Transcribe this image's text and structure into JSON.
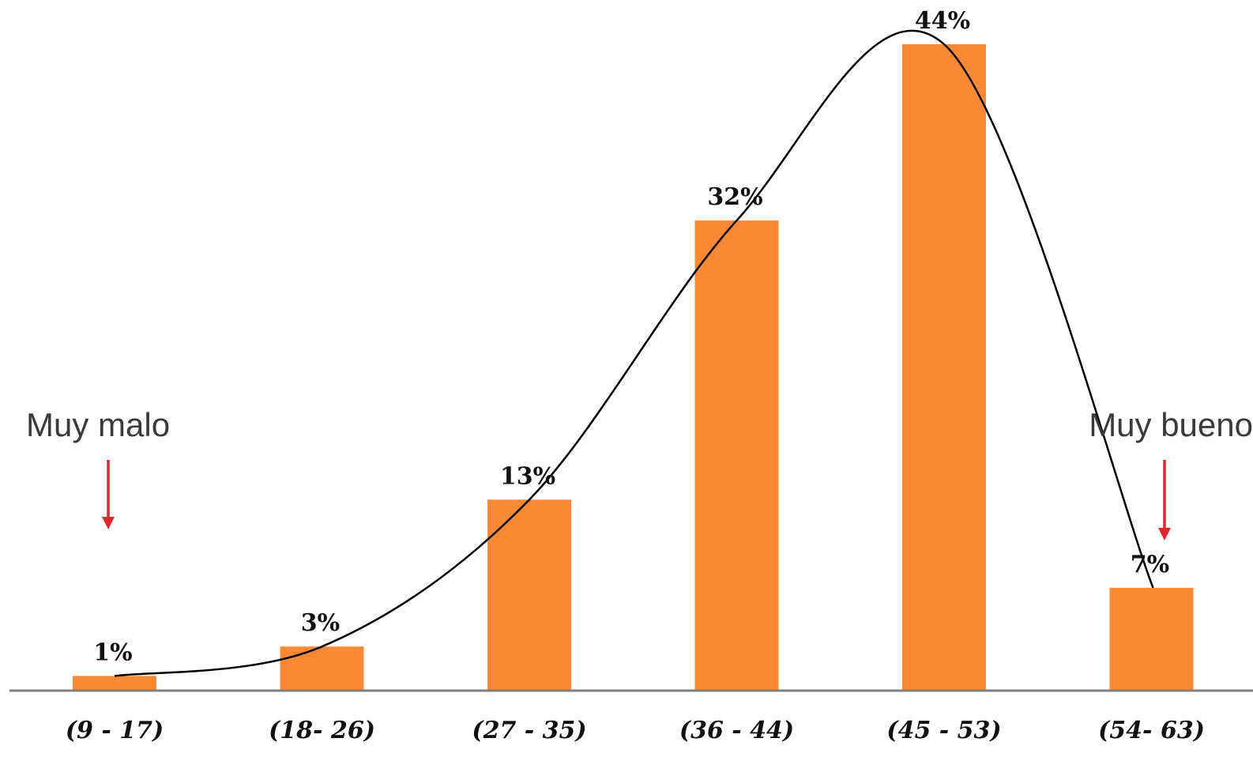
{
  "chart_data": {
    "type": "bar",
    "categories": [
      "(9 - 17)",
      "(18- 26)",
      "(27 - 35)",
      "(36 - 44)",
      "(45 - 53)",
      "(54- 63)"
    ],
    "values": [
      1,
      3,
      13,
      32,
      44,
      7
    ],
    "value_labels": [
      "1%",
      "3%",
      "13%",
      "32%",
      "44%",
      "7%"
    ],
    "unit": "%",
    "ylim": [
      0,
      44
    ],
    "grid": false,
    "legend": "none",
    "trend_curve": true,
    "annotations": [
      {
        "text": "Muy malo",
        "category_index": 0
      },
      {
        "text": "Muy bueno",
        "category_index": 5
      }
    ],
    "colors": {
      "bar": "#fb8835",
      "curve": "#000000",
      "axis": "#7f7f7f",
      "arrow": "#e3242b"
    }
  }
}
